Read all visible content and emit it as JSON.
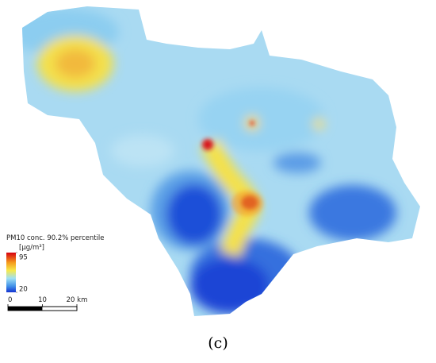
{
  "legend": {
    "title": "PM10 conc. 90.2% percentile",
    "unit": "[µg/m³]",
    "ticks": [
      95,
      20
    ]
  },
  "scale_bar": {
    "ticks": [
      0,
      10,
      {
        "value": 20,
        "label": "20 km"
      }
    ]
  },
  "caption": "(c)"
}
